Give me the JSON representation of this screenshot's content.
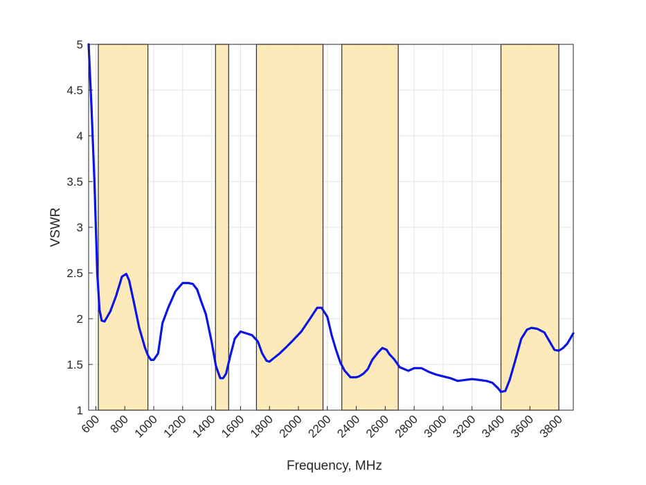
{
  "chart_data": {
    "type": "line",
    "title": "",
    "xlabel": "Frequency, MHz",
    "ylabel": "VSWR",
    "xlim": [
      550,
      3900
    ],
    "ylim": [
      1,
      5
    ],
    "xticks": [
      600,
      800,
      1000,
      1200,
      1400,
      1600,
      1800,
      2000,
      2200,
      2400,
      2600,
      2800,
      3000,
      3200,
      3400,
      3600,
      3800
    ],
    "xtick_labels": [
      "600",
      "800",
      "1000",
      "1200",
      "1400",
      "1600",
      "1800",
      "2000",
      "2200",
      "2400",
      "2600",
      "2800",
      "3000",
      "3200",
      "3400",
      "3600",
      "3800"
    ],
    "yticks": [
      1,
      1.5,
      2,
      2.5,
      3,
      3.5,
      4,
      4.5,
      5
    ],
    "ytick_labels": [
      "1",
      "1.5",
      "2",
      "2.5",
      "3",
      "3.5",
      "4",
      "4.5",
      "5"
    ],
    "grid": true,
    "bands": [
      {
        "start": 617,
        "end": 960
      },
      {
        "start": 1427,
        "end": 1518
      },
      {
        "start": 1710,
        "end": 2170
      },
      {
        "start": 2300,
        "end": 2690
      },
      {
        "start": 3400,
        "end": 3800
      }
    ],
    "band_color": "#fde8b3",
    "line_color": "#0a14e6",
    "series": [
      {
        "x": [
          550,
          570,
          590,
          610,
          625,
          640,
          660,
          700,
          740,
          780,
          810,
          830,
          860,
          900,
          940,
          960,
          980,
          1000,
          1030,
          1060,
          1100,
          1150,
          1200,
          1240,
          1270,
          1300,
          1330,
          1360,
          1400,
          1430,
          1460,
          1480,
          1500,
          1530,
          1560,
          1600,
          1640,
          1680,
          1720,
          1750,
          1780,
          1800,
          1830,
          1870,
          1910,
          1960,
          2020,
          2080,
          2130,
          2160,
          2200,
          2230,
          2260,
          2290,
          2320,
          2360,
          2400,
          2420,
          2450,
          2480,
          2510,
          2550,
          2580,
          2610,
          2630,
          2660,
          2700,
          2760,
          2800,
          2850,
          2900,
          2950,
          3000,
          3050,
          3100,
          3150,
          3200,
          3250,
          3300,
          3340,
          3380,
          3400,
          3430,
          3460,
          3500,
          3540,
          3580,
          3610,
          3650,
          3700,
          3740,
          3770,
          3800,
          3830,
          3860,
          3900
        ],
        "y": [
          5.0,
          4.3,
          3.5,
          2.5,
          2.1,
          1.98,
          1.97,
          2.08,
          2.25,
          2.46,
          2.49,
          2.42,
          2.2,
          1.9,
          1.68,
          1.6,
          1.55,
          1.55,
          1.62,
          1.95,
          2.12,
          2.3,
          2.39,
          2.39,
          2.38,
          2.32,
          2.18,
          2.05,
          1.75,
          1.48,
          1.35,
          1.35,
          1.4,
          1.6,
          1.78,
          1.86,
          1.84,
          1.82,
          1.75,
          1.62,
          1.54,
          1.53,
          1.57,
          1.62,
          1.68,
          1.76,
          1.86,
          2.0,
          2.12,
          2.12,
          2.02,
          1.82,
          1.66,
          1.52,
          1.43,
          1.36,
          1.36,
          1.37,
          1.4,
          1.45,
          1.55,
          1.63,
          1.68,
          1.66,
          1.61,
          1.56,
          1.47,
          1.43,
          1.46,
          1.46,
          1.42,
          1.39,
          1.37,
          1.35,
          1.32,
          1.33,
          1.34,
          1.33,
          1.32,
          1.3,
          1.24,
          1.2,
          1.21,
          1.33,
          1.55,
          1.78,
          1.88,
          1.9,
          1.89,
          1.85,
          1.74,
          1.66,
          1.65,
          1.68,
          1.73,
          1.84
        ]
      }
    ]
  }
}
